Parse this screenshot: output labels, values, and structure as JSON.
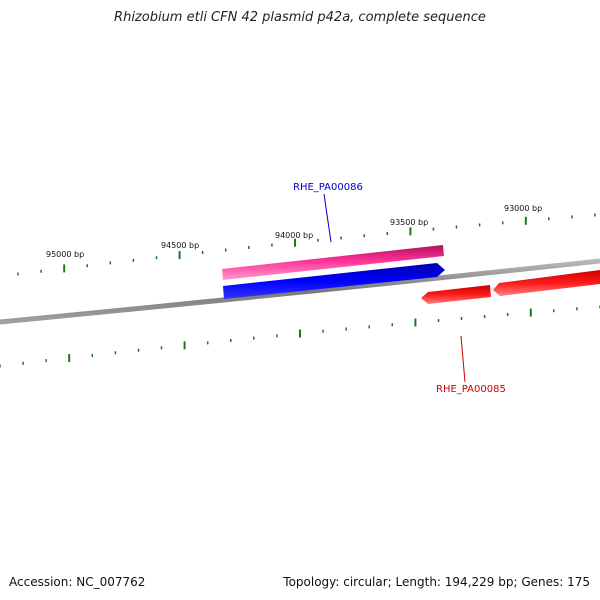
{
  "title": "Rhizobium etli CFN 42 plasmid p42a, complete sequence",
  "footer": {
    "accession": "Accession: NC_007762",
    "stats": "Topology: circular; Length: 194,229 bp; Genes: 175"
  },
  "scale_labels": [
    "95000 bp",
    "94500 bp",
    "94000 bp",
    "93500 bp",
    "93000 bp"
  ],
  "genes": [
    {
      "name": "RHE_PA00086",
      "color": "#0000cc"
    },
    {
      "name": "RHE_PA00085",
      "color": "#cc0000"
    }
  ],
  "colors": {
    "backbone": "#808080",
    "tick": "#1a7a1a",
    "feature_magenta": "#ff3399",
    "feature_blue": "#0000ee",
    "feature_red": "#ff0000"
  }
}
